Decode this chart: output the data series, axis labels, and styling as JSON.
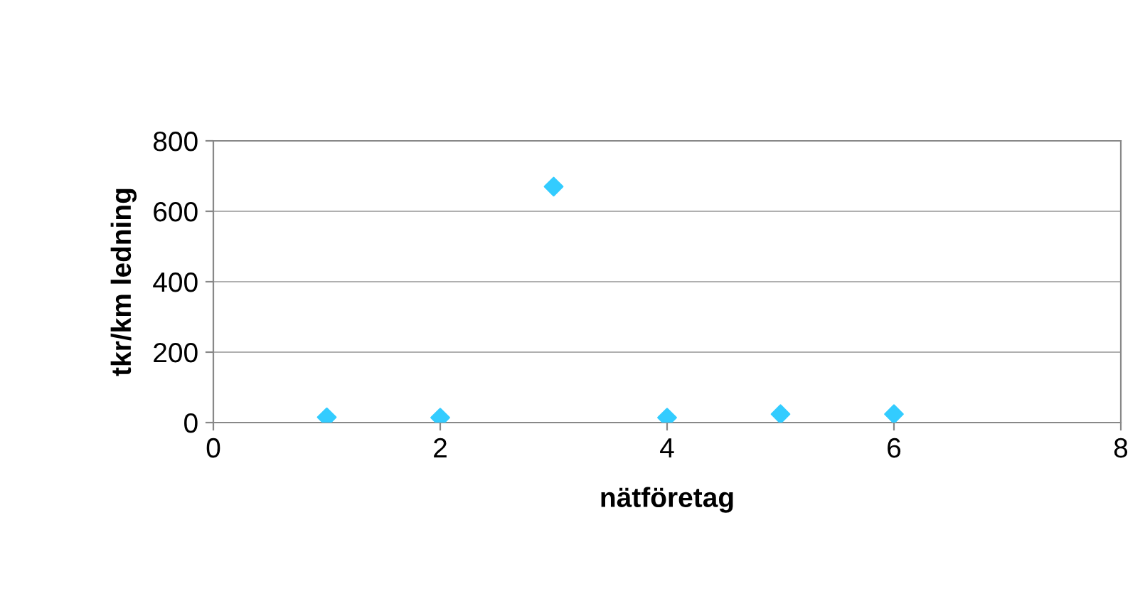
{
  "chart_data": {
    "type": "scatter",
    "xlabel": "nätföretag",
    "ylabel": "tkr/km ledning",
    "x": [
      1,
      2,
      3,
      4,
      5,
      6
    ],
    "series": [
      {
        "color": "#33ccff",
        "values": [
          15,
          14,
          670,
          14,
          24,
          24
        ]
      }
    ],
    "xlim": [
      0,
      8
    ],
    "xticks": [
      0,
      2,
      4,
      6,
      8
    ],
    "ylim": [
      0,
      800
    ],
    "yticks": [
      0,
      200,
      400,
      600,
      800
    ],
    "grid": "y",
    "marker": "diamond",
    "legend": false
  }
}
